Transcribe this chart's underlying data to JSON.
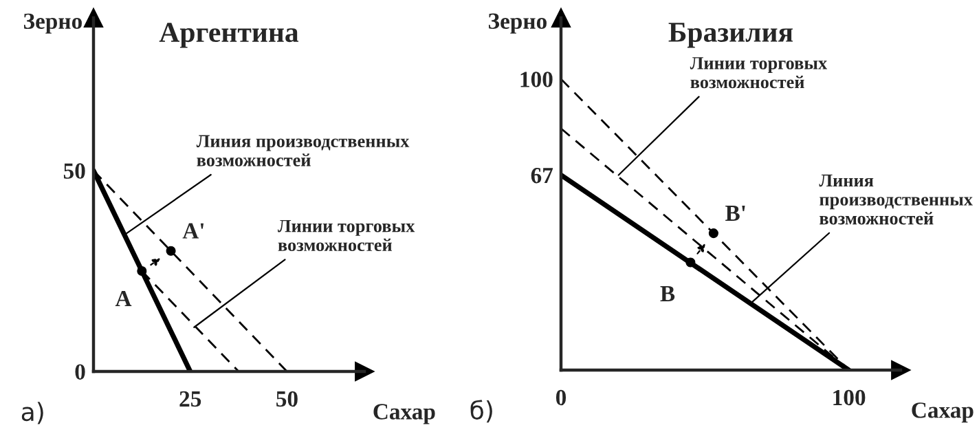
{
  "chart_data": [
    {
      "type": "line",
      "title": "Аргентина",
      "xlabel": "Сахар",
      "ylabel": "Зерно",
      "xlim": [
        0,
        70
      ],
      "ylim": [
        0,
        88
      ],
      "xticks": [
        25,
        50
      ],
      "yticks": [
        0,
        50
      ],
      "grid": false,
      "legend": false,
      "annotations": [
        {
          "text": "Линия производственных возможностей",
          "x": 8,
          "y": 34
        },
        {
          "text": "Линии торговых возможностей",
          "x": 26,
          "y": 11
        },
        "а)"
      ],
      "series": [
        {
          "line_style": "solid",
          "color": "#000000",
          "x": [
            0,
            25
          ],
          "values": [
            50,
            0
          ]
        },
        {
          "line_style": "dashed",
          "color": "#000000",
          "x": [
            0,
            50
          ],
          "values": [
            50,
            0
          ]
        },
        {
          "line_style": "dashed",
          "color": "#000000",
          "x": [
            12.5,
            37.5
          ],
          "values": [
            25,
            0
          ]
        },
        {
          "type": "scatter",
          "name": "A",
          "color": "#000000",
          "x": [
            12.5
          ],
          "values": [
            25
          ]
        },
        {
          "type": "scatter",
          "name": "A'",
          "color": "#000000",
          "x": [
            20
          ],
          "values": [
            30
          ]
        }
      ]
    },
    {
      "type": "line",
      "title": "Бразилия",
      "xlabel": "Сахар",
      "ylabel": "Зерно",
      "xlim": [
        0,
        118
      ],
      "ylim": [
        0,
        121
      ],
      "xticks": [
        0,
        100
      ],
      "yticks": [
        67,
        100
      ],
      "grid": false,
      "legend": false,
      "annotations": [
        {
          "text": "Линии торговых возможностей",
          "x": 20,
          "y": 67
        },
        {
          "text": "Линия производственных возможностей",
          "x": 66,
          "y": 23
        },
        "б)"
      ],
      "series": [
        {
          "line_style": "solid",
          "color": "#000000",
          "x": [
            0,
            100
          ],
          "values": [
            67,
            0
          ]
        },
        {
          "line_style": "dashed",
          "color": "#000000",
          "x": [
            0,
            100
          ],
          "values": [
            100,
            0
          ]
        },
        {
          "line_style": "dashed",
          "color": "#000000",
          "x": [
            0,
            100
          ],
          "values": [
            83,
            0
          ]
        },
        {
          "type": "scatter",
          "name": "B",
          "color": "#000000",
          "x": [
            45
          ],
          "values": [
            37
          ]
        },
        {
          "type": "scatter",
          "name": "B'",
          "color": "#000000",
          "x": [
            53
          ],
          "values": [
            47
          ]
        }
      ]
    }
  ]
}
